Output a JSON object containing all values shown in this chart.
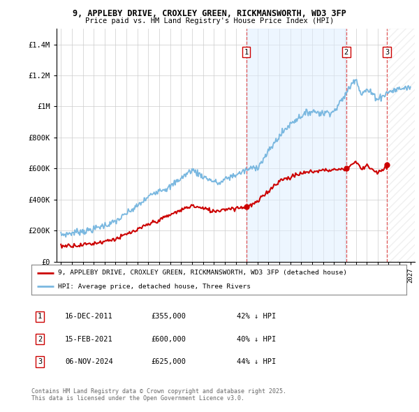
{
  "title1": "9, APPLEBY DRIVE, CROXLEY GREEN, RICKMANSWORTH, WD3 3FP",
  "title2": "Price paid vs. HM Land Registry's House Price Index (HPI)",
  "hpi_color": "#7ab8e0",
  "price_color": "#cc0000",
  "bg_color": "#ffffff",
  "grid_color": "#cccccc",
  "ylim": [
    0,
    1500000
  ],
  "yticks": [
    0,
    200000,
    400000,
    600000,
    800000,
    1000000,
    1200000,
    1400000
  ],
  "ytick_labels": [
    "£0",
    "£200K",
    "£400K",
    "£600K",
    "£800K",
    "£1M",
    "£1.2M",
    "£1.4M"
  ],
  "sale_dates": [
    "16-DEC-2011",
    "15-FEB-2021",
    "06-NOV-2024"
  ],
  "sale_prices": [
    355000,
    600000,
    625000
  ],
  "sale_hpi_diff": [
    "42% ↓ HPI",
    "40% ↓ HPI",
    "44% ↓ HPI"
  ],
  "legend_label_red": "9, APPLEBY DRIVE, CROXLEY GREEN, RICKMANSWORTH, WD3 3FP (detached house)",
  "legend_label_blue": "HPI: Average price, detached house, Three Rivers",
  "footnote": "Contains HM Land Registry data © Crown copyright and database right 2025.\nThis data is licensed under the Open Government Licence v3.0.",
  "vline_color": "#dd4444",
  "sale_year_nums": [
    2011.96,
    2021.12,
    2024.85
  ],
  "shade_fill_color": "#ddeeff",
  "shade_fill_alpha": 0.5,
  "hatch_fill_alpha": 0.15
}
